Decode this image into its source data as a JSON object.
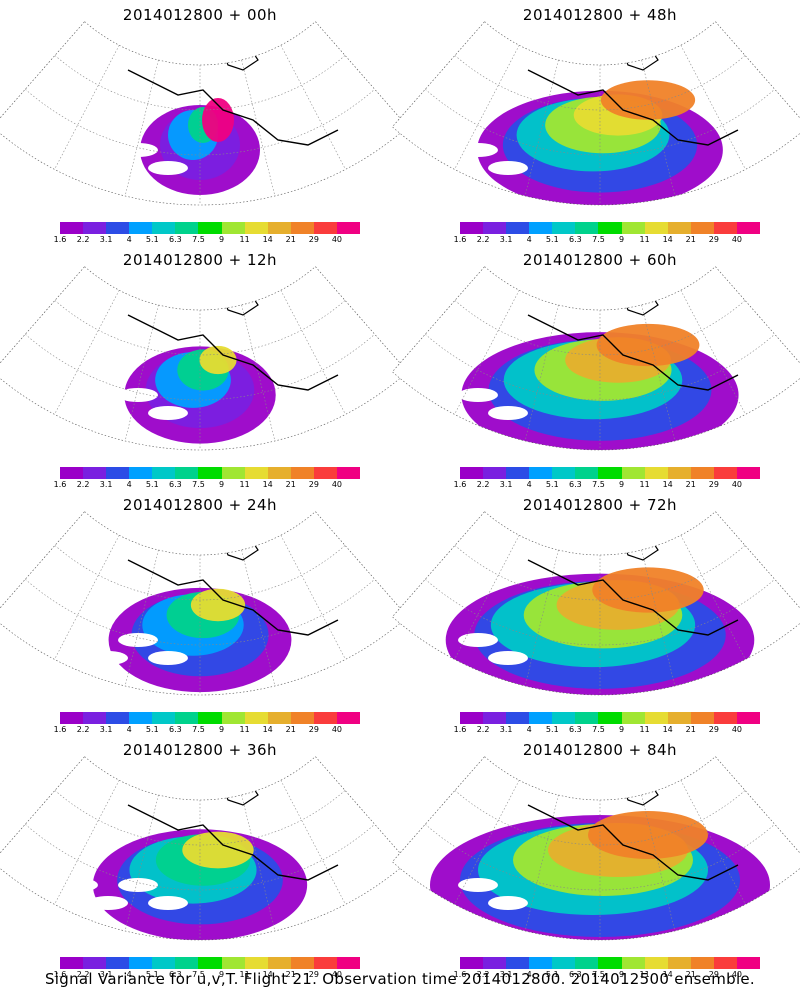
{
  "panels": [
    {
      "title": "2014012800 + 00h",
      "lead_h": 0
    },
    {
      "title": "2014012800 + 48h",
      "lead_h": 48
    },
    {
      "title": "2014012800 + 12h",
      "lead_h": 12
    },
    {
      "title": "2014012800 + 60h",
      "lead_h": 60
    },
    {
      "title": "2014012800 + 24h",
      "lead_h": 24
    },
    {
      "title": "2014012800 + 72h",
      "lead_h": 72
    },
    {
      "title": "2014012800 + 36h",
      "lead_h": 36
    },
    {
      "title": "2014012800 + 84h",
      "lead_h": 84
    }
  ],
  "colorbar": {
    "ticks": [
      "1.6",
      "2.2",
      "3.1",
      "4",
      "5.1",
      "6.3",
      "7.5",
      "9",
      "11",
      "14",
      "21",
      "29",
      "40"
    ],
    "colors": [
      "#9a00c8",
      "#7a20e0",
      "#2c4ce6",
      "#00a0ff",
      "#00c8c8",
      "#00d28c",
      "#00dc00",
      "#a0e632",
      "#e6dc32",
      "#e6af2d",
      "#f08228",
      "#fa3c3c",
      "#f00082"
    ]
  },
  "footer": "Signal Variance for u,v,T. Flight 21. Observation time 2014012800. 2014012500 ensemble."
}
